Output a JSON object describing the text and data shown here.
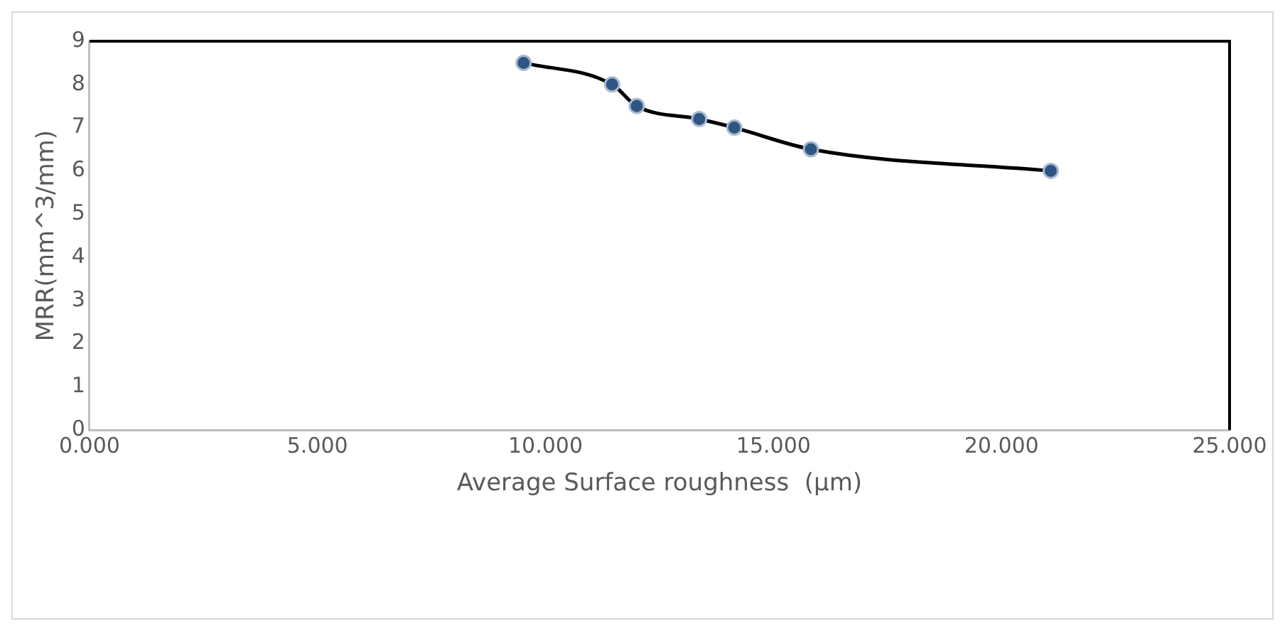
{
  "chart_data": {
    "type": "line",
    "xlabel": "Average Surface roughness  (µm)",
    "ylabel": "MRR(mm^3/mm)",
    "x": [
      9.52,
      11.46,
      12.0,
      13.37,
      14.14,
      15.82,
      21.08
    ],
    "series": [
      {
        "color": "#000000",
        "values": [
          8.5,
          8.0,
          7.5,
          7.2,
          7.0,
          6.5,
          6.0
        ]
      }
    ],
    "xlim": [
      0,
      25
    ],
    "xticks": [
      {
        "value": 0,
        "label": "0.000"
      },
      {
        "value": 5,
        "label": "5.000"
      },
      {
        "value": 10,
        "label": "10.000"
      },
      {
        "value": 15,
        "label": "15.000"
      },
      {
        "value": 20,
        "label": "20.000"
      },
      {
        "value": 25,
        "label": "25.000"
      }
    ],
    "ylim": [
      0,
      9
    ],
    "yticks": [
      0,
      1,
      2,
      3,
      4,
      5,
      6,
      7,
      8,
      9
    ],
    "grid": false,
    "legend": false,
    "marker": "circle",
    "line_style": "solid"
  }
}
